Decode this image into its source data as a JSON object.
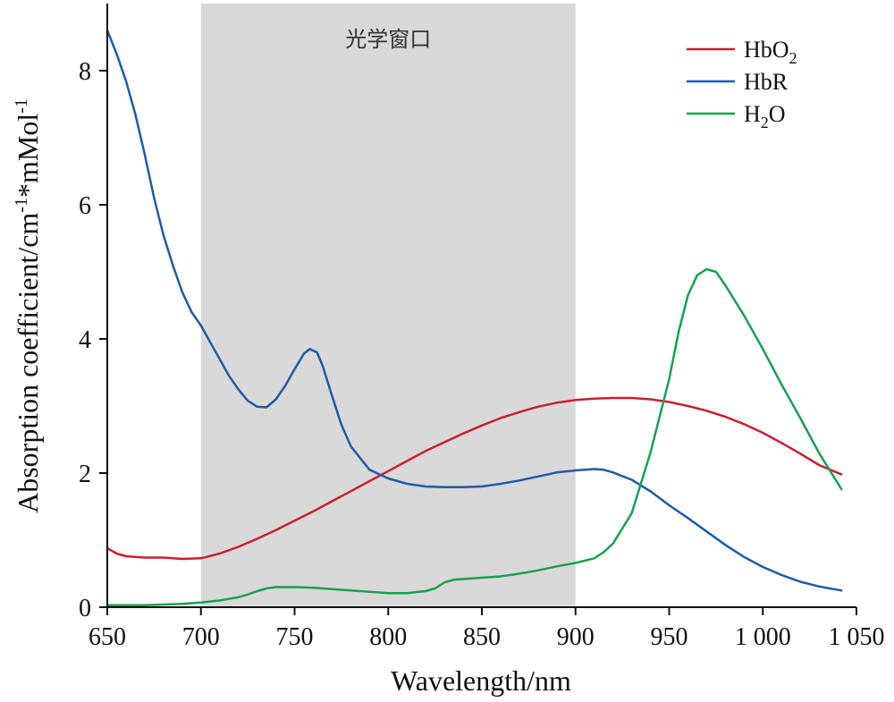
{
  "chart_data": {
    "type": "line",
    "xlabel": "Wavelength/nm",
    "ylabel_base": "Absorption coefficient/cm",
    "ylabel_sup1": "-1",
    "ylabel_mid": "*mMol",
    "ylabel_sup2": "-1",
    "xlim": [
      650,
      1050
    ],
    "ylim": [
      0,
      9
    ],
    "x_ticks": [
      650,
      700,
      750,
      800,
      850,
      900,
      950,
      1000,
      1050
    ],
    "x_tick_labels": [
      "650",
      "700",
      "750",
      "800",
      "850",
      "900",
      "950",
      "1 000",
      "1 050"
    ],
    "y_ticks": [
      0,
      2,
      4,
      6,
      8
    ],
    "y_tick_labels": [
      "0",
      "2",
      "4",
      "6",
      "8"
    ],
    "grid": false,
    "legend_position": "top-right",
    "shaded_region": {
      "x_range": [
        700,
        900
      ],
      "label": "光学窗口",
      "color": "#d9d9d9"
    },
    "series": [
      {
        "name": "HbO2",
        "legend_base": "HbO",
        "legend_sub": "2",
        "color": "#c8202e",
        "points": [
          [
            650,
            0.88
          ],
          [
            655,
            0.8
          ],
          [
            660,
            0.76
          ],
          [
            670,
            0.74
          ],
          [
            680,
            0.74
          ],
          [
            690,
            0.72
          ],
          [
            700,
            0.73
          ],
          [
            710,
            0.8
          ],
          [
            720,
            0.9
          ],
          [
            730,
            1.02
          ],
          [
            740,
            1.15
          ],
          [
            750,
            1.29
          ],
          [
            760,
            1.43
          ],
          [
            770,
            1.58
          ],
          [
            780,
            1.73
          ],
          [
            790,
            1.88
          ],
          [
            800,
            2.03
          ],
          [
            810,
            2.18
          ],
          [
            820,
            2.33
          ],
          [
            830,
            2.46
          ],
          [
            840,
            2.59
          ],
          [
            850,
            2.71
          ],
          [
            860,
            2.82
          ],
          [
            870,
            2.91
          ],
          [
            880,
            2.99
          ],
          [
            890,
            3.05
          ],
          [
            900,
            3.09
          ],
          [
            910,
            3.11
          ],
          [
            920,
            3.12
          ],
          [
            930,
            3.12
          ],
          [
            940,
            3.1
          ],
          [
            950,
            3.06
          ],
          [
            960,
            3.0
          ],
          [
            970,
            2.93
          ],
          [
            980,
            2.84
          ],
          [
            990,
            2.73
          ],
          [
            1000,
            2.6
          ],
          [
            1010,
            2.45
          ],
          [
            1020,
            2.29
          ],
          [
            1030,
            2.12
          ],
          [
            1042,
            1.98
          ]
        ]
      },
      {
        "name": "HbR",
        "legend_base": "HbR",
        "legend_sub": "",
        "color": "#1f5aa8",
        "points": [
          [
            650,
            8.6
          ],
          [
            655,
            8.25
          ],
          [
            660,
            7.85
          ],
          [
            665,
            7.35
          ],
          [
            670,
            6.75
          ],
          [
            675,
            6.1
          ],
          [
            680,
            5.55
          ],
          [
            685,
            5.1
          ],
          [
            690,
            4.7
          ],
          [
            695,
            4.4
          ],
          [
            700,
            4.2
          ],
          [
            705,
            3.95
          ],
          [
            710,
            3.7
          ],
          [
            715,
            3.45
          ],
          [
            720,
            3.25
          ],
          [
            725,
            3.08
          ],
          [
            730,
            2.99
          ],
          [
            735,
            2.98
          ],
          [
            740,
            3.1
          ],
          [
            745,
            3.3
          ],
          [
            750,
            3.55
          ],
          [
            755,
            3.78
          ],
          [
            758,
            3.85
          ],
          [
            762,
            3.8
          ],
          [
            765,
            3.6
          ],
          [
            770,
            3.15
          ],
          [
            775,
            2.72
          ],
          [
            780,
            2.4
          ],
          [
            790,
            2.05
          ],
          [
            800,
            1.92
          ],
          [
            810,
            1.84
          ],
          [
            820,
            1.8
          ],
          [
            830,
            1.79
          ],
          [
            840,
            1.79
          ],
          [
            850,
            1.8
          ],
          [
            860,
            1.84
          ],
          [
            870,
            1.89
          ],
          [
            880,
            1.95
          ],
          [
            890,
            2.01
          ],
          [
            900,
            2.04
          ],
          [
            905,
            2.05
          ],
          [
            910,
            2.06
          ],
          [
            915,
            2.05
          ],
          [
            920,
            2.01
          ],
          [
            930,
            1.9
          ],
          [
            940,
            1.73
          ],
          [
            950,
            1.52
          ],
          [
            960,
            1.33
          ],
          [
            970,
            1.13
          ],
          [
            980,
            0.93
          ],
          [
            990,
            0.75
          ],
          [
            1000,
            0.6
          ],
          [
            1010,
            0.48
          ],
          [
            1020,
            0.38
          ],
          [
            1030,
            0.31
          ],
          [
            1042,
            0.25
          ]
        ]
      },
      {
        "name": "H2O",
        "legend_base": "H",
        "legend_sub": "2",
        "legend_tail": "O",
        "color": "#18a050",
        "points": [
          [
            650,
            0.03
          ],
          [
            660,
            0.03
          ],
          [
            670,
            0.03
          ],
          [
            680,
            0.04
          ],
          [
            690,
            0.05
          ],
          [
            700,
            0.07
          ],
          [
            710,
            0.1
          ],
          [
            720,
            0.15
          ],
          [
            725,
            0.19
          ],
          [
            730,
            0.24
          ],
          [
            735,
            0.28
          ],
          [
            740,
            0.3
          ],
          [
            750,
            0.3
          ],
          [
            760,
            0.29
          ],
          [
            770,
            0.27
          ],
          [
            780,
            0.25
          ],
          [
            790,
            0.23
          ],
          [
            800,
            0.21
          ],
          [
            810,
            0.21
          ],
          [
            820,
            0.24
          ],
          [
            825,
            0.28
          ],
          [
            830,
            0.37
          ],
          [
            835,
            0.41
          ],
          [
            840,
            0.42
          ],
          [
            850,
            0.44
          ],
          [
            860,
            0.46
          ],
          [
            870,
            0.5
          ],
          [
            880,
            0.55
          ],
          [
            890,
            0.61
          ],
          [
            900,
            0.66
          ],
          [
            910,
            0.73
          ],
          [
            915,
            0.82
          ],
          [
            920,
            0.95
          ],
          [
            930,
            1.4
          ],
          [
            940,
            2.3
          ],
          [
            950,
            3.4
          ],
          [
            955,
            4.1
          ],
          [
            960,
            4.65
          ],
          [
            965,
            4.95
          ],
          [
            970,
            5.04
          ],
          [
            975,
            5.0
          ],
          [
            980,
            4.8
          ],
          [
            990,
            4.35
          ],
          [
            1000,
            3.85
          ],
          [
            1010,
            3.32
          ],
          [
            1020,
            2.82
          ],
          [
            1030,
            2.3
          ],
          [
            1042,
            1.76
          ]
        ]
      }
    ]
  }
}
